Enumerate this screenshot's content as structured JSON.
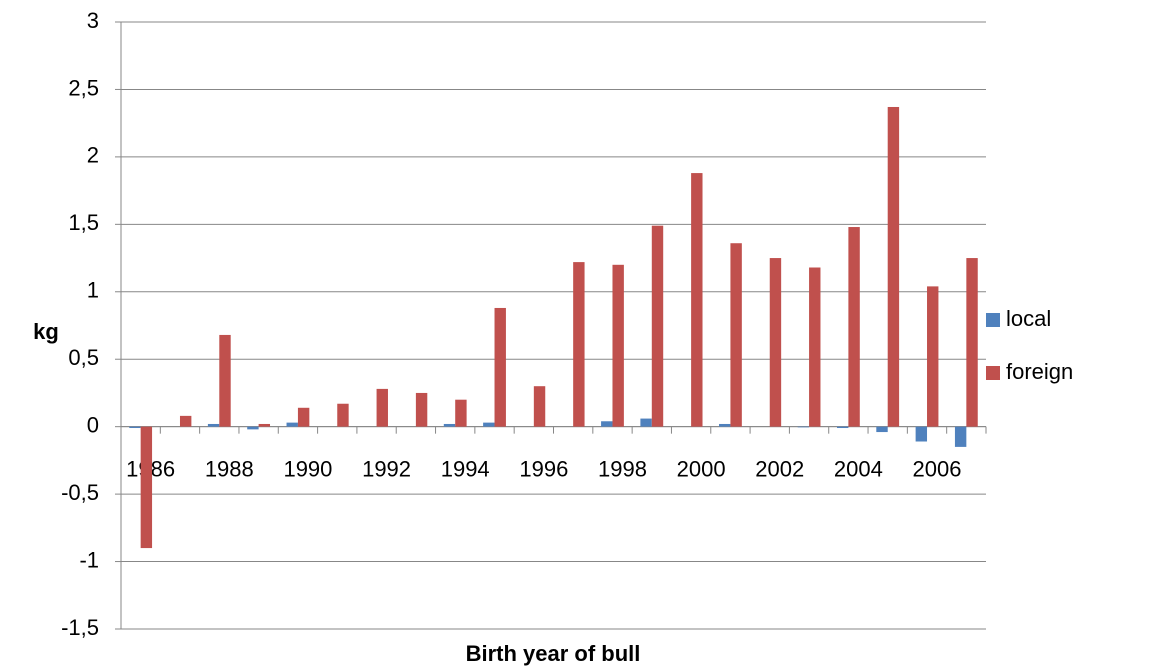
{
  "chart_data": {
    "type": "bar",
    "x_label": "Birth year of bull",
    "y_label": "kg",
    "categories": [
      "1986",
      null,
      "1988",
      null,
      "1990",
      null,
      "1992",
      null,
      "1994",
      null,
      "1996",
      null,
      "1998",
      null,
      "2000",
      null,
      "2002",
      null,
      "2004",
      null,
      "2006",
      null
    ],
    "series": [
      {
        "name": "local",
        "color": "#4f81bd",
        "values": [
          -0.01,
          0,
          0.02,
          -0.02,
          0.03,
          0,
          0,
          0,
          0.02,
          0.03,
          0,
          0,
          0.04,
          0.06,
          0,
          0.02,
          0,
          -0.005,
          -0.01,
          -0.04,
          -0.11,
          -0.15
        ]
      },
      {
        "name": "foreign",
        "color": "#c0504d",
        "values": [
          -0.9,
          0.08,
          0.68,
          0.02,
          0.14,
          0.17,
          0.28,
          0.25,
          0.2,
          0.88,
          0.3,
          1.22,
          1.2,
          1.49,
          1.88,
          1.36,
          1.25,
          1.18,
          1.48,
          2.37,
          1.04,
          1.25
        ]
      }
    ],
    "ylim": [
      -1.5,
      3
    ],
    "yticks": [
      {
        "value": -1.5,
        "label": "-1,5"
      },
      -1,
      {
        "value": -0.5,
        "label": "-0,5"
      },
      0,
      {
        "value": 0.5,
        "label": "0,5"
      },
      1,
      {
        "value": 1.5,
        "label": "1,5"
      },
      2,
      {
        "value": 2.5,
        "label": "2,5"
      },
      3
    ],
    "grid": true,
    "legend": "right"
  }
}
